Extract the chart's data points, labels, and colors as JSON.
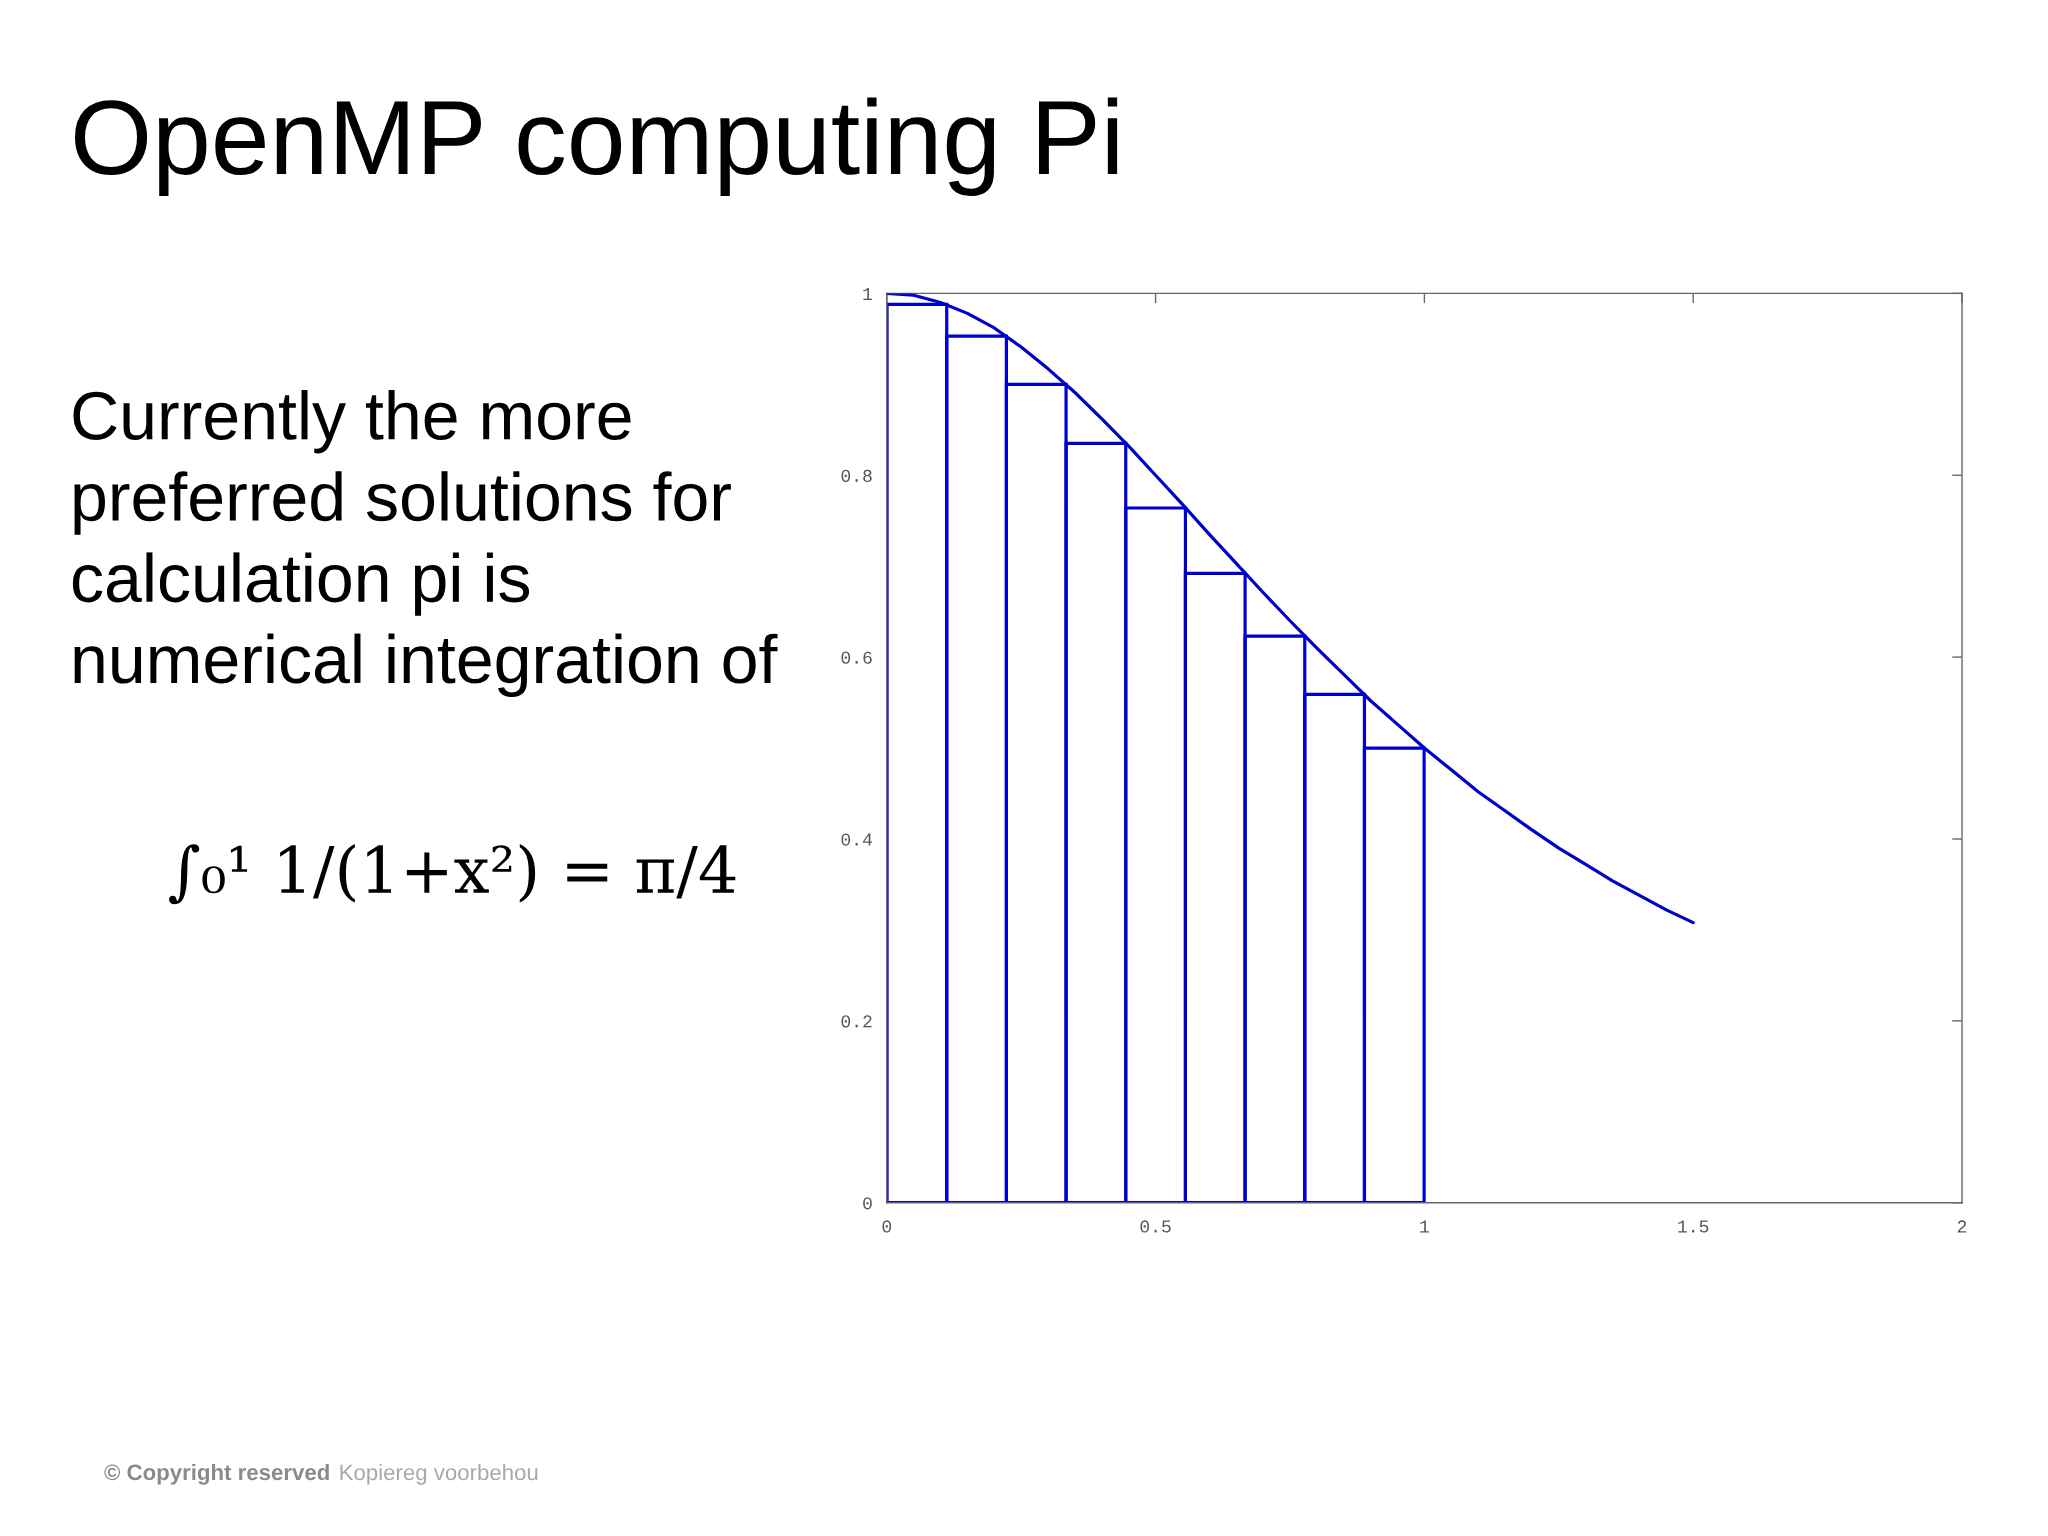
{
  "chart_data": {
    "type": "bar",
    "title": "OpenMP computing Pi",
    "annotations": [
      "Currently the more\npreferred solutions for\ncalculation pi is\nnumerical integration of",
      "∫₀¹ 1/(1+x²) = π/4",
      "© Copyright reserved",
      "Kopiereg voorbehou"
    ],
    "series": [
      {
        "color": "#0000cc",
        "x": [
          0.056,
          0.167,
          0.278,
          0.389,
          0.5,
          0.611,
          0.722,
          0.833,
          0.944
        ],
        "values": [
          0.988,
          0.953,
          0.9,
          0.835,
          0.764,
          0.692,
          0.623,
          0.559,
          0.5
        ]
      },
      {
        "type": "line",
        "color": "#0000cc",
        "x": [
          0,
          0.05,
          0.1,
          0.15,
          0.2,
          0.25,
          0.3,
          0.35,
          0.4,
          0.45,
          0.5,
          0.55,
          0.6,
          0.65,
          0.7,
          0.75,
          0.8,
          0.85,
          0.9,
          0.95,
          1,
          1.05,
          1.1,
          1.15,
          1.2,
          1.25,
          1.3,
          1.35,
          1.4,
          1.45,
          1.5
        ],
        "values": [
          1,
          0.998,
          0.99,
          0.978,
          0.962,
          0.941,
          0.917,
          0.891,
          0.862,
          0.832,
          0.8,
          0.768,
          0.735,
          0.703,
          0.671,
          0.64,
          0.61,
          0.581,
          0.552,
          0.526,
          0.5,
          0.476,
          0.452,
          0.431,
          0.41,
          0.39,
          0.372,
          0.354,
          0.338,
          0.322,
          0.308
        ]
      }
    ],
    "xlim": [
      0,
      2
    ],
    "xticks": [
      0,
      0.5,
      1,
      1.5,
      2
    ],
    "ylim": [
      0,
      1
    ],
    "yticks": [
      0,
      0.2,
      0.4,
      0.6,
      0.8,
      1
    ]
  }
}
